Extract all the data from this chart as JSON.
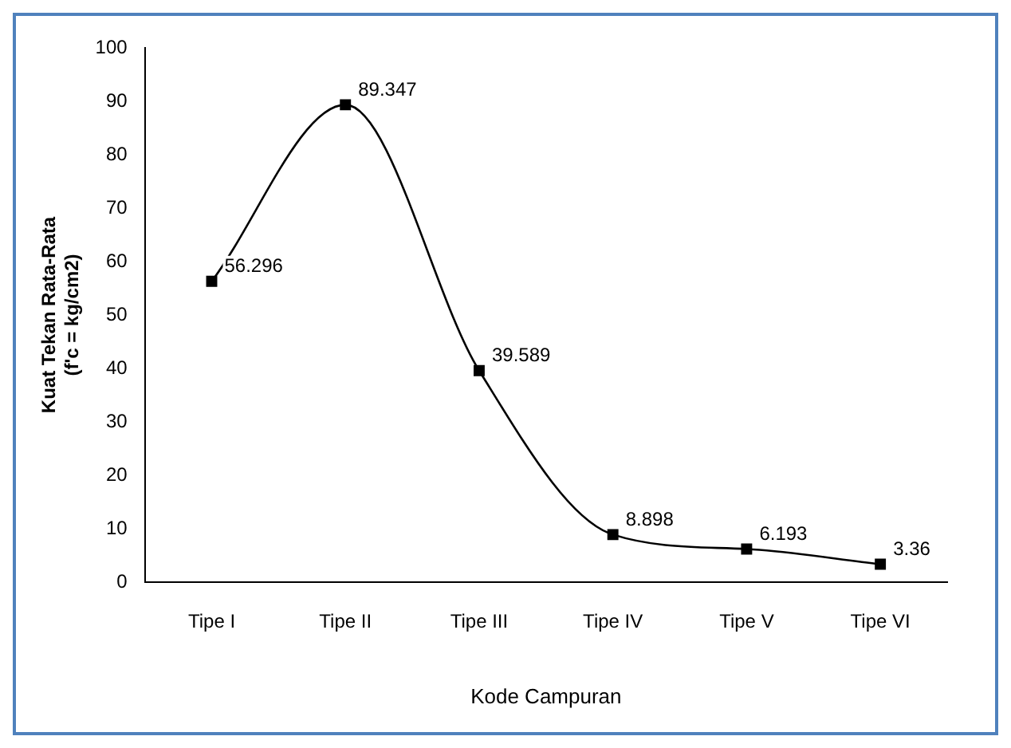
{
  "chart_data": {
    "type": "line",
    "xlabel": "Kode Campuran",
    "ylabel": "Kuat Tekan Rata-Rata\n(f'c = kg/cm2)",
    "categories": [
      "Tipe I",
      "Tipe II",
      "Tipe III",
      "Tipe IV",
      "Tipe V",
      "Tipe VI"
    ],
    "series": [
      {
        "color": "#000000",
        "values": [
          56.296,
          89.347,
          39.589,
          8.898,
          6.193,
          3.36
        ]
      }
    ],
    "ylim": [
      0,
      100
    ],
    "yticks": [
      0,
      10,
      20,
      30,
      40,
      50,
      60,
      70,
      80,
      90,
      100
    ],
    "marker": "square",
    "line_style": "solid",
    "grid": false,
    "legend": false,
    "data_labels": true
  }
}
